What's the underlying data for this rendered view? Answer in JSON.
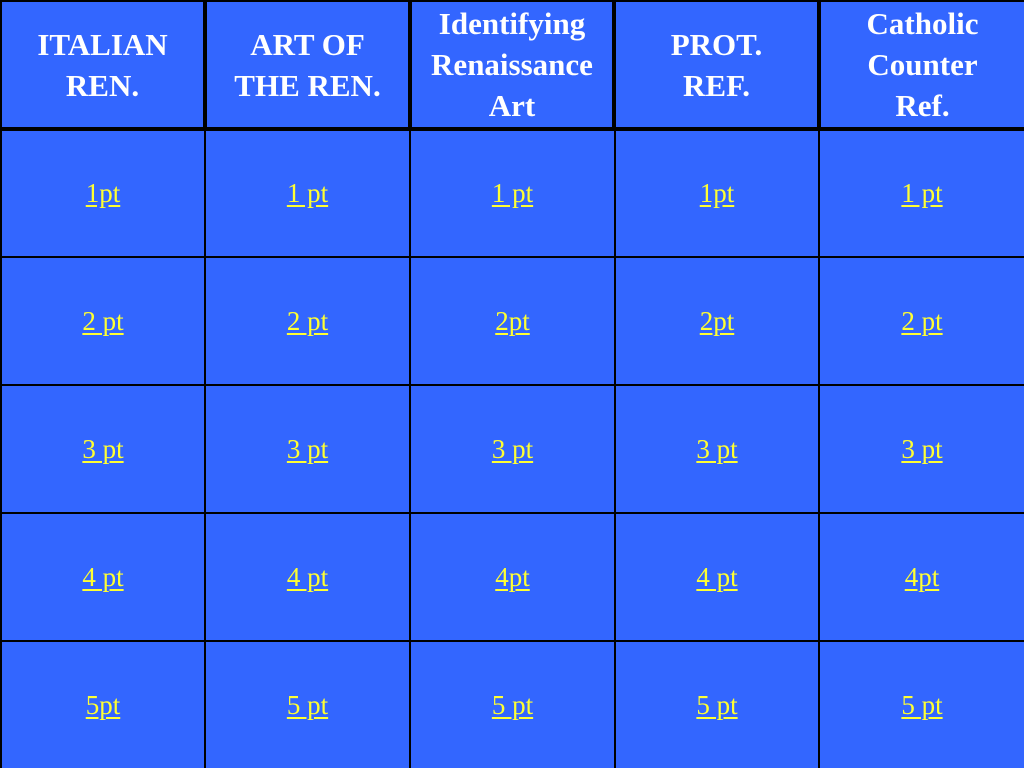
{
  "board": {
    "categories": [
      "ITALIAN\nREN.",
      "ART OF\nTHE REN.",
      "Identifying\nRenaissance\nArt",
      "PROT.\nREF.",
      "Catholic\nCounter\nRef."
    ],
    "rows": [
      [
        "1pt",
        "1 pt",
        "1 pt",
        "1pt",
        "1 pt"
      ],
      [
        "2 pt",
        "2 pt",
        "2pt",
        "2pt",
        "2 pt"
      ],
      [
        "3 pt",
        "3 pt",
        "3 pt",
        "3 pt",
        "3 pt"
      ],
      [
        "4 pt",
        "4 pt",
        "4pt",
        "4 pt",
        "4pt"
      ],
      [
        "5pt",
        "5 pt",
        "5 pt",
        "5 pt",
        "5 pt"
      ]
    ]
  },
  "colors": {
    "cell_background": "#3366ff",
    "grid_lines": "#000000",
    "header_text": "#ffffff",
    "link_text": "#ffff33"
  }
}
